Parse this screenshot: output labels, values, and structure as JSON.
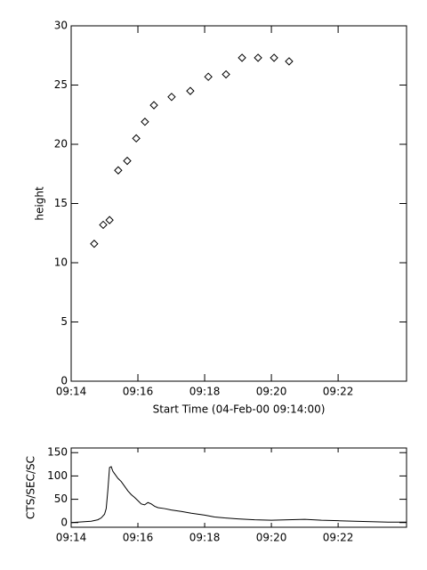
{
  "chart_data": [
    {
      "type": "scatter",
      "marker": "diamond",
      "color": "#000000",
      "x_label": "Start Time (04-Feb-00 09:14:00)",
      "y_label": "height",
      "x": [
        14.69,
        14.96,
        15.15,
        15.41,
        15.68,
        15.95,
        16.21,
        16.48,
        17.01,
        17.57,
        18.11,
        18.64,
        19.12,
        19.6,
        20.08,
        20.53
      ],
      "values": [
        11.6,
        13.2,
        13.6,
        17.8,
        18.6,
        20.5,
        21.9,
        23.3,
        24.0,
        24.5,
        25.7,
        25.9,
        27.3,
        27.3,
        27.3,
        27.0
      ],
      "xlim": [
        14,
        24.05
      ],
      "ylim": [
        0,
        30
      ],
      "xticks": [
        {
          "value": 14,
          "label": "09:14"
        },
        {
          "value": 16,
          "label": "09:16"
        },
        {
          "value": 18,
          "label": "09:18"
        },
        {
          "value": 20,
          "label": "09:20"
        },
        {
          "value": 22,
          "label": "09:22"
        }
      ],
      "yticks": [
        0,
        5,
        10,
        15,
        20,
        25,
        30
      ]
    },
    {
      "type": "line",
      "color": "#000000",
      "y_label": "CTS/SEC/SC",
      "x": [
        14.0,
        14.2,
        14.4,
        14.6,
        14.8,
        14.9,
        15.0,
        15.05,
        15.1,
        15.15,
        15.2,
        15.25,
        15.3,
        15.4,
        15.5,
        15.6,
        15.7,
        15.8,
        15.9,
        16.0,
        16.1,
        16.2,
        16.3,
        16.4,
        16.5,
        16.6,
        16.8,
        17.0,
        17.3,
        17.6,
        18.0,
        18.3,
        18.6,
        19.0,
        19.5,
        20.0,
        20.5,
        21.0,
        21.5,
        22.0,
        22.5,
        23.0,
        23.5,
        24.05
      ],
      "values": [
        0,
        1,
        2,
        3,
        6,
        10,
        18,
        30,
        70,
        118,
        120,
        110,
        105,
        95,
        88,
        78,
        68,
        60,
        54,
        47,
        40,
        38,
        43,
        40,
        35,
        32,
        30,
        27,
        24,
        20,
        16,
        12,
        10,
        8,
        6,
        5,
        6,
        7,
        5,
        4,
        3,
        2,
        1,
        1
      ],
      "xlim": [
        14,
        24.05
      ],
      "ylim": [
        -10,
        160
      ],
      "xticks": [
        {
          "value": 14,
          "label": "09:14"
        },
        {
          "value": 16,
          "label": "09:16"
        },
        {
          "value": 18,
          "label": "09:18"
        },
        {
          "value": 20,
          "label": "09:20"
        },
        {
          "value": 22,
          "label": "09:22"
        }
      ],
      "yticks": [
        0,
        50,
        100,
        150
      ]
    }
  ]
}
